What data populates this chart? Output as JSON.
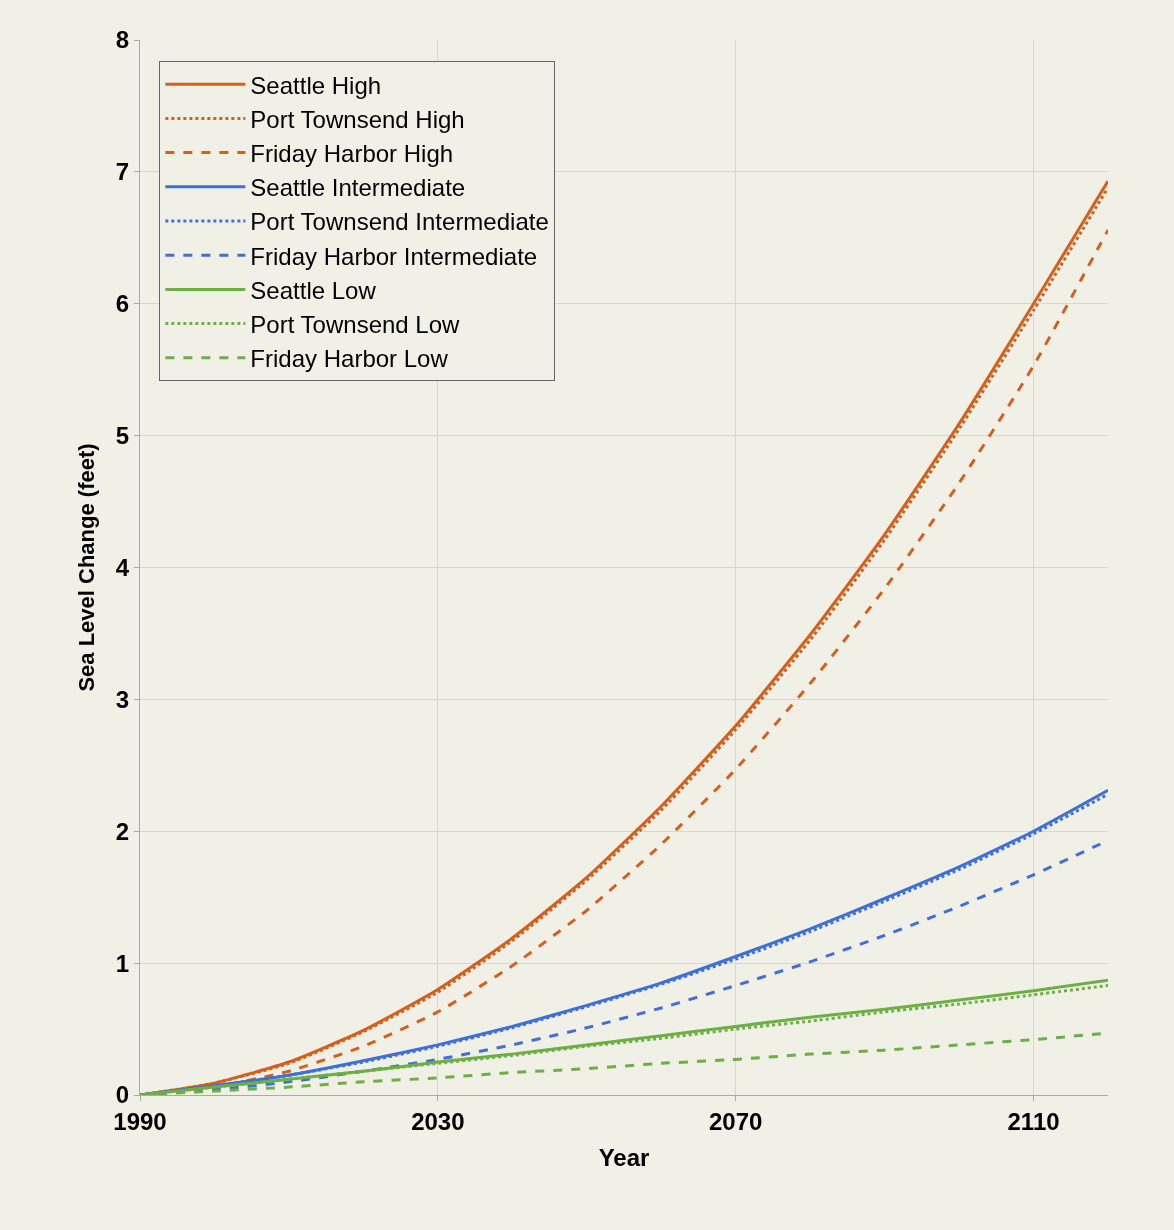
{
  "chart_data": {
    "type": "line",
    "xlabel": "Year",
    "ylabel": "Sea Level Change (feet)",
    "x": [
      1990,
      2000,
      2010,
      2020,
      2030,
      2040,
      2050,
      2060,
      2070,
      2080,
      2090,
      2100,
      2110,
      2120
    ],
    "xlim": [
      1990,
      2120
    ],
    "xticks": [
      1990,
      2030,
      2070,
      2110
    ],
    "ylim": [
      0,
      8
    ],
    "yticks": [
      0,
      1,
      2,
      3,
      4,
      5,
      6,
      7,
      8
    ],
    "grid": true,
    "legend": "top left",
    "series": [
      {
        "name": "Seattle High",
        "color": "#d4601e",
        "line_style": "solid",
        "values": [
          0,
          0.09,
          0.25,
          0.49,
          0.8,
          1.19,
          1.65,
          2.19,
          2.8,
          3.49,
          4.25,
          5.09,
          6.0,
          6.93
        ]
      },
      {
        "name": "Port Townsend High",
        "color": "#d4601e",
        "line_style": "dotted",
        "values": [
          0,
          0.09,
          0.24,
          0.48,
          0.78,
          1.17,
          1.63,
          2.16,
          2.77,
          3.45,
          4.21,
          5.05,
          5.95,
          6.88
        ]
      },
      {
        "name": "Friday Harbor High",
        "color": "#d4601e",
        "line_style": "dashed",
        "values": [
          0,
          0.06,
          0.18,
          0.37,
          0.63,
          0.98,
          1.4,
          1.9,
          2.47,
          3.12,
          3.84,
          4.64,
          5.53,
          6.56
        ]
      },
      {
        "name": "Seattle Intermediate",
        "color": "#3f6fd8",
        "line_style": "solid",
        "values": [
          0,
          0.07,
          0.15,
          0.26,
          0.38,
          0.52,
          0.68,
          0.85,
          1.05,
          1.26,
          1.49,
          1.73,
          2.0,
          2.31
        ]
      },
      {
        "name": "Port Townsend Intermediate",
        "color": "#3f6fd8",
        "line_style": "dotted",
        "values": [
          0,
          0.07,
          0.15,
          0.25,
          0.37,
          0.51,
          0.67,
          0.84,
          1.03,
          1.24,
          1.47,
          1.71,
          1.98,
          2.28
        ]
      },
      {
        "name": "Friday Harbor Intermediate",
        "color": "#3f6fd8",
        "line_style": "dashed",
        "values": [
          0,
          0.04,
          0.1,
          0.18,
          0.27,
          0.38,
          0.51,
          0.66,
          0.83,
          1.01,
          1.21,
          1.43,
          1.67,
          1.93
        ]
      },
      {
        "name": "Seattle Low",
        "color": "#6cb044",
        "line_style": "solid",
        "values": [
          0,
          0.06,
          0.12,
          0.18,
          0.25,
          0.31,
          0.38,
          0.45,
          0.52,
          0.59,
          0.65,
          0.72,
          0.79,
          0.87
        ]
      },
      {
        "name": "Port Townsend Low",
        "color": "#6cb044",
        "line_style": "dotted",
        "values": [
          0,
          0.06,
          0.12,
          0.18,
          0.24,
          0.3,
          0.37,
          0.43,
          0.5,
          0.56,
          0.63,
          0.69,
          0.76,
          0.83
        ]
      },
      {
        "name": "Friday Harbor Low",
        "color": "#6cb044",
        "line_style": "dashed",
        "values": [
          0,
          0.03,
          0.06,
          0.1,
          0.13,
          0.17,
          0.2,
          0.24,
          0.27,
          0.31,
          0.34,
          0.38,
          0.42,
          0.47
        ]
      }
    ]
  }
}
